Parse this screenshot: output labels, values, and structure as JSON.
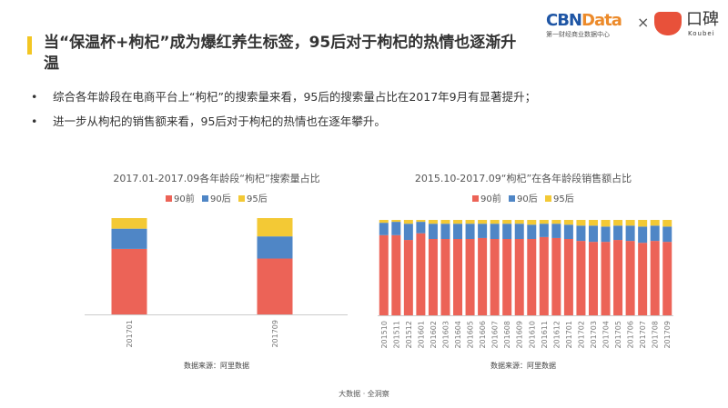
{
  "header": {
    "title": "当“保温杯+枸杞”成为爆红养生标签，95后对于枸杞的热情也逐渐升温",
    "logo_cbn": "CBNData",
    "logo_cbn_sub": "第一财经商业数据中心",
    "logo_x": "×",
    "logo_koubei": "口碑",
    "logo_koubei_sub": "Koubei"
  },
  "bullets": [
    "综合各年龄段在电商平台上“枸杞”的搜索量来看，95后的搜索量占比在2017年9月有显著提升；",
    "进一步从枸杞的销售额来看，95后对于枸杞的热情也在逐年攀升。"
  ],
  "footer": "大数据 · 全洞察",
  "colors": {
    "90前": "#ec6357",
    "90后": "#4f86c6",
    "95后": "#f3c935"
  },
  "chart_data": [
    {
      "type": "bar",
      "stacked": true,
      "title": "2017.01-2017.09各年龄段“枸杞”搜索量占比",
      "source": "数据来源：阿里数据",
      "legend": "top",
      "categories": [
        "201701",
        "201709"
      ],
      "ylim": [
        0,
        100
      ],
      "series": [
        {
          "name": "90前",
          "values": [
            68,
            58
          ]
        },
        {
          "name": "90后",
          "values": [
            21,
            23
          ]
        },
        {
          "name": "95后",
          "values": [
            11,
            19
          ]
        }
      ]
    },
    {
      "type": "bar",
      "stacked": true,
      "title": "2015.10-2017.09“枸杞”在各年龄段销售额占比",
      "source": "数据来源：阿里数据",
      "legend": "top",
      "categories": [
        "201510",
        "201511",
        "201512",
        "201601",
        "201602",
        "201603",
        "201604",
        "201605",
        "201606",
        "201607",
        "201608",
        "201609",
        "201610",
        "201611",
        "201612",
        "201701",
        "201702",
        "201703",
        "201704",
        "201705",
        "201706",
        "201707",
        "201708",
        "201709"
      ],
      "ylim": [
        0,
        100
      ],
      "series": [
        {
          "name": "90前",
          "values": [
            84,
            84,
            79,
            86,
            80,
            80,
            80,
            80,
            81,
            80,
            80,
            80,
            80,
            82,
            81,
            80,
            78,
            77,
            77,
            79,
            78,
            76,
            78,
            77
          ]
        },
        {
          "name": "90后",
          "values": [
            13,
            14,
            17,
            12,
            16,
            16,
            16,
            16,
            15,
            16,
            16,
            16,
            15,
            14,
            15,
            15,
            16,
            17,
            16,
            15,
            16,
            17,
            16,
            16
          ]
        },
        {
          "name": "95后",
          "values": [
            3,
            2,
            4,
            2,
            4,
            4,
            4,
            4,
            4,
            4,
            4,
            4,
            5,
            4,
            4,
            5,
            6,
            6,
            7,
            6,
            6,
            7,
            6,
            7
          ]
        }
      ]
    }
  ]
}
